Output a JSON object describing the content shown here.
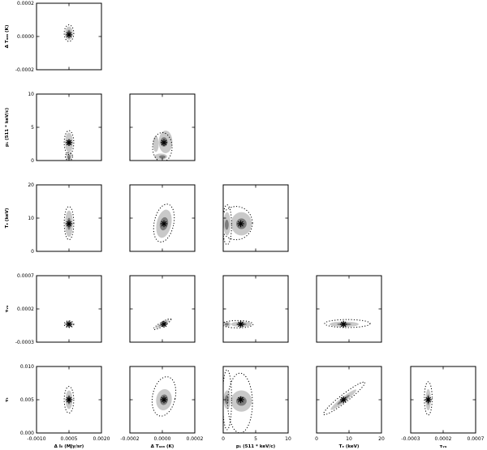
{
  "chart_data": {
    "type": "scatter",
    "title": "",
    "parameters": [
      {
        "id": "dI",
        "label": "Δ I₀ (MJy/sr)",
        "range": [
          -0.001,
          0.002
        ],
        "ticks": [
          -0.001,
          0.0005,
          0.002
        ],
        "tick_labels": [
          "-0.0010",
          "0.0005",
          "0.0020"
        ],
        "best": 0.0005
      },
      {
        "id": "dT",
        "label": "Δ Tₐₐₙ (K)",
        "range": [
          -0.0002,
          0.0002
        ],
        "ticks": [
          -0.0002,
          0.0,
          0.0002
        ],
        "tick_labels": [
          "-0.0002",
          "0.0000",
          "0.0002"
        ],
        "best": 1e-05
      },
      {
        "id": "p1",
        "label": "p₁ (511 * keV/c)",
        "range": [
          0,
          10
        ],
        "ticks": [
          0,
          5,
          10
        ],
        "tick_labels": [
          "0",
          "5",
          "10"
        ],
        "best": 2.7
      },
      {
        "id": "Te",
        "label": "Tₑ (keV)",
        "range": [
          0,
          20
        ],
        "ticks": [
          0,
          10,
          20
        ],
        "tick_labels": [
          "0",
          "10",
          "20"
        ],
        "best": 8.3
      },
      {
        "id": "tw",
        "label": "τᵥᵤ",
        "range": [
          -0.0003,
          0.0007
        ],
        "ticks": [
          -0.0003,
          0.0002,
          0.0007
        ],
        "tick_labels": [
          "-0.0003",
          "0.0002",
          "0.0007"
        ],
        "best": -3e-05
      },
      {
        "id": "tt",
        "label": "τₜ",
        "range": [
          0.0,
          0.01
        ],
        "ticks": [
          0.0,
          0.005,
          0.01
        ],
        "tick_labels": [
          "0.000",
          "0.005",
          "0.010"
        ],
        "best": 0.005
      }
    ],
    "panels": [
      {
        "row": 0,
        "col": 0,
        "x": "dI",
        "y": "dT",
        "c95": [
          {
            "cx": 0.0005,
            "cy": 2e-05,
            "rx": 0.00018,
            "ry": 4e-05,
            "rot": 0
          }
        ],
        "c68": [
          {
            "cx": 0.0005,
            "cy": 2e-05,
            "rx": 9e-05,
            "ry": 2e-05,
            "rot": 0
          }
        ],
        "dotted": [
          {
            "cx": 0.0005,
            "cy": 2e-05,
            "rx": 0.00022,
            "ry": 5e-05,
            "rot": 0
          }
        ]
      },
      {
        "row": 1,
        "col": 0,
        "x": "dI",
        "y": "p1",
        "c95": [
          {
            "cx": 0.0005,
            "cy": 2.7,
            "rx": 0.00018,
            "ry": 1.5,
            "rot": 0
          },
          {
            "cx": 0.0005,
            "cy": 0.6,
            "rx": 0.00014,
            "ry": 0.55,
            "rot": 0
          }
        ],
        "c68": [
          {
            "cx": 0.0005,
            "cy": 2.7,
            "rx": 9e-05,
            "ry": 0.5,
            "rot": 0
          },
          {
            "cx": 0.0005,
            "cy": 0.55,
            "rx": 7e-05,
            "ry": 0.3,
            "rot": 0
          }
        ],
        "dotted": [
          {
            "cx": 0.0005,
            "cy": 2.7,
            "rx": 0.00022,
            "ry": 1.8,
            "rot": 0
          },
          {
            "cx": 0.0005,
            "cy": 0.6,
            "rx": 0.00017,
            "ry": 0.6,
            "rot": 0
          }
        ]
      },
      {
        "row": 1,
        "col": 1,
        "x": "dT",
        "y": "p1",
        "c95": [
          {
            "cx": 2e-05,
            "cy": 2.8,
            "rx": 4.2e-05,
            "ry": 1.7,
            "rot": 0
          },
          {
            "cx": -1e-05,
            "cy": 0.6,
            "rx": 4e-05,
            "ry": 0.45,
            "rot": 0
          },
          {
            "cx": -4e-05,
            "cy": 2.5,
            "rx": 1.8e-05,
            "ry": 1.2,
            "rot": 0
          }
        ],
        "c68": [
          {
            "cx": 1e-05,
            "cy": 2.8,
            "rx": 2.2e-05,
            "ry": 0.7,
            "rot": 0
          },
          {
            "cx": 0.0,
            "cy": 0.55,
            "rx": 2e-05,
            "ry": 0.25,
            "rot": 0
          }
        ],
        "dotted": [
          {
            "cx": 0.0,
            "cy": 2.0,
            "rx": 6e-05,
            "ry": 2.2,
            "rot": 0
          }
        ]
      },
      {
        "row": 2,
        "col": 0,
        "x": "dI",
        "y": "Te",
        "c95": [
          {
            "cx": 0.0005,
            "cy": 8.3,
            "rx": 0.00018,
            "ry": 4.0,
            "rot": 0
          }
        ],
        "c68": [
          {
            "cx": 0.0005,
            "cy": 8.3,
            "rx": 9e-05,
            "ry": 1.8,
            "rot": 0
          }
        ],
        "dotted": [
          {
            "cx": 0.0005,
            "cy": 8.5,
            "rx": 0.00022,
            "ry": 5.0,
            "rot": 0
          }
        ]
      },
      {
        "row": 2,
        "col": 1,
        "x": "dT",
        "y": "Te",
        "c95": [
          {
            "cx": 1e-05,
            "cy": 8.3,
            "rx": 4.5e-05,
            "ry": 4.3,
            "rot": 12
          }
        ],
        "c68": [
          {
            "cx": 1e-05,
            "cy": 8.3,
            "rx": 2.5e-05,
            "ry": 2.0,
            "rot": 12
          }
        ],
        "dotted": [
          {
            "cx": 1e-05,
            "cy": 8.5,
            "rx": 6e-05,
            "ry": 5.8,
            "rot": 12
          }
        ]
      },
      {
        "row": 2,
        "col": 2,
        "x": "p1",
        "y": "Te",
        "c95": [
          {
            "cx": 2.8,
            "cy": 8.3,
            "rx": 1.6,
            "ry": 3.5,
            "rot": 0
          },
          {
            "cx": 0.6,
            "cy": 8.3,
            "rx": 0.55,
            "ry": 3.5,
            "rot": 0
          }
        ],
        "c68": [
          {
            "cx": 2.8,
            "cy": 8.3,
            "rx": 0.8,
            "ry": 1.6,
            "rot": 0
          },
          {
            "cx": 0.55,
            "cy": 8.0,
            "rx": 0.3,
            "ry": 1.5,
            "rot": 0
          }
        ],
        "dotted": [
          {
            "cx": 2.0,
            "cy": 8.5,
            "rx": 2.5,
            "ry": 5.0,
            "rot": 0
          },
          {
            "cx": 0.6,
            "cy": 8.0,
            "rx": 0.7,
            "ry": 6.0,
            "rot": 0
          }
        ]
      },
      {
        "row": 3,
        "col": 0,
        "x": "dI",
        "y": "tw",
        "c95": [
          {
            "cx": 0.0005,
            "cy": -3e-05,
            "rx": 0.00018,
            "ry": 4e-05,
            "rot": 0
          }
        ],
        "c68": [
          {
            "cx": 0.0005,
            "cy": -3e-05,
            "rx": 9e-05,
            "ry": 2e-05,
            "rot": 0
          }
        ],
        "dotted": [
          {
            "cx": 0.0005,
            "cy": -3e-05,
            "rx": 0.00022,
            "ry": 5e-05,
            "rot": 0
          }
        ]
      },
      {
        "row": 3,
        "col": 1,
        "x": "dT",
        "y": "tw",
        "c95": [
          {
            "cx": 0.0,
            "cy": -3e-05,
            "rx": 5e-05,
            "ry": 2.5e-05,
            "rot": -30
          }
        ],
        "c68": [
          {
            "cx": 0.0,
            "cy": -3e-05,
            "rx": 2.5e-05,
            "ry": 1.2e-05,
            "rot": -30
          }
        ],
        "dotted": [
          {
            "cx": 0.0,
            "cy": -3e-05,
            "rx": 6.2e-05,
            "ry": 3.2e-05,
            "rot": -30
          }
        ]
      },
      {
        "row": 3,
        "col": 2,
        "x": "p1",
        "y": "tw",
        "c95": [
          {
            "cx": 2.8,
            "cy": -3e-05,
            "rx": 1.6,
            "ry": 4e-05,
            "rot": 0
          },
          {
            "cx": 0.6,
            "cy": -3e-05,
            "rx": 0.55,
            "ry": 4e-05,
            "rot": 0
          }
        ],
        "c68": [
          {
            "cx": 2.8,
            "cy": -3e-05,
            "rx": 0.8,
            "ry": 2e-05,
            "rot": 0
          },
          {
            "cx": 0.55,
            "cy": -3e-05,
            "rx": 0.3,
            "ry": 2e-05,
            "rot": 0
          }
        ],
        "dotted": [
          {
            "cx": 2.2,
            "cy": -3e-05,
            "rx": 2.4,
            "ry": 5.5e-05,
            "rot": 0
          }
        ]
      },
      {
        "row": 3,
        "col": 3,
        "x": "Te",
        "y": "tw",
        "c95": [
          {
            "cx": 8.5,
            "cy": -3e-05,
            "rx": 4.5,
            "ry": 4e-05,
            "rot": 0
          }
        ],
        "c68": [
          {
            "cx": 8.5,
            "cy": -3e-05,
            "rx": 2.2,
            "ry": 2e-05,
            "rot": 0
          }
        ],
        "dotted": [
          {
            "cx": 9.5,
            "cy": -2e-05,
            "rx": 7.0,
            "ry": 6e-05,
            "rot": 0
          }
        ]
      },
      {
        "row": 4,
        "col": 0,
        "x": "dI",
        "y": "tt",
        "c95": [
          {
            "cx": 0.0005,
            "cy": 0.005,
            "rx": 0.00016,
            "ry": 0.0014,
            "rot": 0
          }
        ],
        "c68": [
          {
            "cx": 0.0005,
            "cy": 0.005,
            "rx": 8e-05,
            "ry": 0.0007,
            "rot": 0
          }
        ],
        "dotted": [
          {
            "cx": 0.0005,
            "cy": 0.005,
            "rx": 0.00022,
            "ry": 0.002,
            "rot": 0
          }
        ]
      },
      {
        "row": 4,
        "col": 1,
        "x": "dT",
        "y": "tt",
        "c95": [
          {
            "cx": 1e-05,
            "cy": 0.005,
            "rx": 4.8e-05,
            "ry": 0.0016,
            "rot": 8
          }
        ],
        "c68": [
          {
            "cx": 1e-05,
            "cy": 0.005,
            "rx": 2.5e-05,
            "ry": 0.0008,
            "rot": 8
          }
        ],
        "dotted": [
          {
            "cx": 1e-05,
            "cy": 0.0055,
            "rx": 7e-05,
            "ry": 0.003,
            "rot": 12
          }
        ]
      },
      {
        "row": 4,
        "col": 2,
        "x": "p1",
        "y": "tt",
        "c95": [
          {
            "cx": 2.8,
            "cy": 0.0048,
            "rx": 1.6,
            "ry": 0.0016,
            "rot": 0
          },
          {
            "cx": 0.6,
            "cy": 0.005,
            "rx": 0.55,
            "ry": 0.0014,
            "rot": 0
          }
        ],
        "c68": [
          {
            "cx": 2.8,
            "cy": 0.0048,
            "rx": 0.8,
            "ry": 0.0007,
            "rot": 0
          },
          {
            "cx": 0.55,
            "cy": 0.005,
            "rx": 0.3,
            "ry": 0.0007,
            "rot": 0
          }
        ],
        "dotted": [
          {
            "cx": 2.6,
            "cy": 0.0045,
            "rx": 1.9,
            "ry": 0.0045,
            "rot": 0
          },
          {
            "cx": 0.6,
            "cy": 0.005,
            "rx": 0.7,
            "ry": 0.0045,
            "rot": 0
          }
        ]
      },
      {
        "row": 4,
        "col": 3,
        "x": "Te",
        "y": "tt",
        "c95": [
          {
            "cx": 8.3,
            "cy": 0.005,
            "rx": 5.0,
            "ry": 0.0004,
            "rot": -38
          }
        ],
        "c68": [
          {
            "cx": 8.3,
            "cy": 0.005,
            "rx": 2.4,
            "ry": 0.0002,
            "rot": -38
          }
        ],
        "dotted": [
          {
            "cx": 8.5,
            "cy": 0.0052,
            "rx": 8.0,
            "ry": 0.0006,
            "rot": -38
          }
        ]
      },
      {
        "row": 4,
        "col": 4,
        "x": "tw",
        "y": "tt",
        "c95": [
          {
            "cx": -3e-05,
            "cy": 0.005,
            "rx": 4e-05,
            "ry": 0.0016,
            "rot": 0
          }
        ],
        "c68": [
          {
            "cx": -3e-05,
            "cy": 0.005,
            "rx": 2e-05,
            "ry": 0.0008,
            "rot": 0
          }
        ],
        "dotted": [
          {
            "cx": -3e-05,
            "cy": 0.0052,
            "rx": 6e-05,
            "ry": 0.0025,
            "rot": 0
          }
        ]
      }
    ]
  }
}
